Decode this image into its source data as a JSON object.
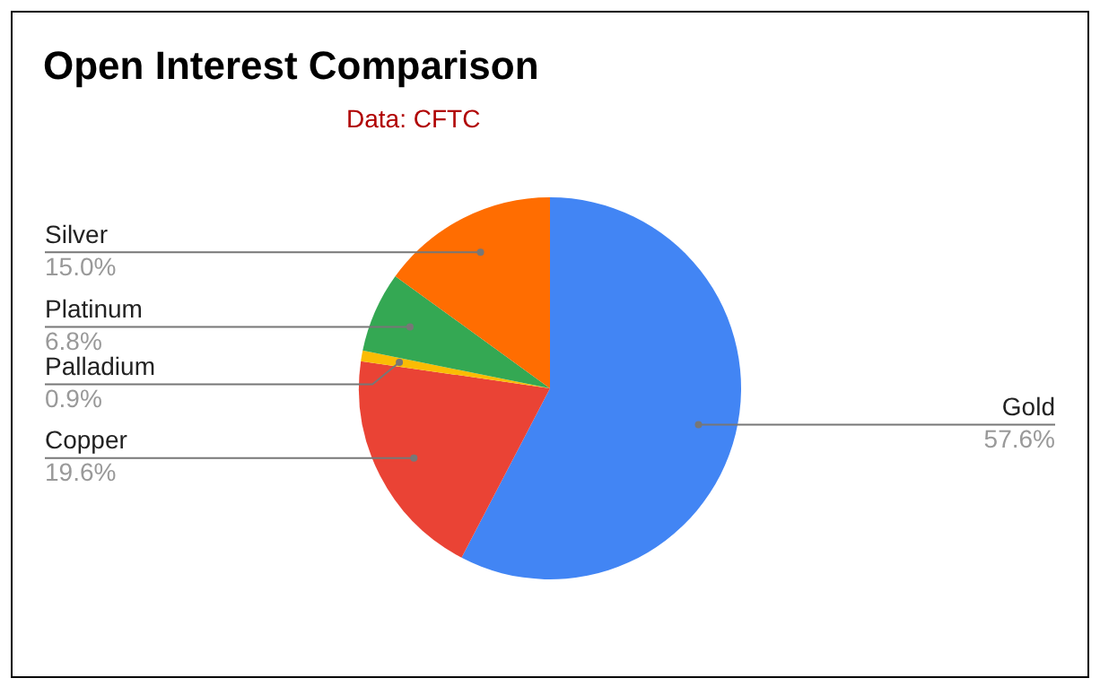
{
  "chart_data": {
    "type": "pie",
    "title": "Open Interest Comparison",
    "annotations": [
      "Data: CFTC"
    ],
    "categories": [
      "Gold",
      "Copper",
      "Palladium",
      "Platinum",
      "Silver"
    ],
    "values": [
      57.6,
      19.6,
      0.9,
      6.8,
      15.0
    ],
    "colors": [
      "#4285f4",
      "#ea4335",
      "#fbbc04",
      "#34a853",
      "#ff6d01"
    ],
    "value_labels": [
      "57.6%",
      "19.6%",
      "0.9%",
      "6.8%",
      "15.0%"
    ],
    "legend": false
  }
}
